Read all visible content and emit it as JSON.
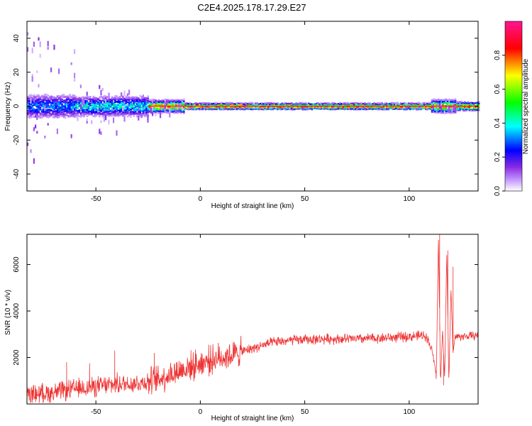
{
  "title": "C2E4.2025.178.17.29.E27",
  "chart_data": [
    {
      "type": "heatmap",
      "xlabel": "Height of straight line (km)",
      "ylabel": "Frequency (Hz)",
      "xlim": [
        -83,
        133
      ],
      "ylim": [
        -50,
        50
      ],
      "xticks": [
        -50,
        0,
        50,
        100
      ],
      "yticks": [
        -40,
        -20,
        0,
        20,
        40
      ],
      "colorbar": {
        "label": "Normalized spectral amplitude",
        "range": [
          0,
          1
        ],
        "ticks": [
          "0.0",
          "0.2",
          "0.4",
          "0.6",
          "0.8"
        ],
        "tick_values": [
          0.0,
          0.2,
          0.4,
          0.6,
          0.8
        ],
        "colors": [
          "#ffffff",
          "#8a2be2",
          "#0000ff",
          "#00ffff",
          "#00ff00",
          "#ffff00",
          "#ff0000",
          "#ff1493"
        ]
      },
      "ridge": {
        "center_frequency": 0,
        "segments": [
          {
            "x0": -83,
            "x1": -60,
            "spread": 6,
            "scatter": 45,
            "peak": 0.35
          },
          {
            "x0": -60,
            "x1": -40,
            "spread": 5,
            "scatter": 15,
            "peak": 0.45
          },
          {
            "x0": -40,
            "x1": -25,
            "spread": 5,
            "scatter": 10,
            "peak": 0.45
          },
          {
            "x0": -25,
            "x1": -8,
            "spread": 3,
            "scatter": 4,
            "peak": 0.85
          },
          {
            "x0": -8,
            "x1": 110,
            "spread": 1.5,
            "scatter": 0,
            "peak": 0.95
          },
          {
            "x0": 110,
            "x1": 122,
            "spread": 3,
            "scatter": 2,
            "peak": 0.9
          },
          {
            "x0": 122,
            "x1": 133,
            "spread": 2,
            "scatter": 0,
            "peak": 0.95
          }
        ]
      }
    },
    {
      "type": "line",
      "xlabel": "Height of straight line (km)",
      "ylabel": "SNR (10 * v/v)",
      "xlim": [
        -83,
        133
      ],
      "ylim": [
        0,
        7300
      ],
      "xticks": [
        -50,
        0,
        50,
        100
      ],
      "yticks": [
        2000,
        4000,
        6000
      ],
      "series": [
        {
          "color": "#ee3333",
          "x": [
            -83,
            -70,
            -60,
            -50,
            -40,
            -30,
            -22,
            -15,
            -5,
            5,
            15,
            25,
            35,
            45,
            60,
            75,
            90,
            100,
            108,
            111,
            113,
            114,
            115,
            116,
            117,
            118,
            119,
            120,
            121,
            122,
            125,
            133
          ],
          "y": [
            400,
            500,
            650,
            750,
            850,
            900,
            1000,
            1250,
            1600,
            1900,
            2100,
            2400,
            2650,
            2750,
            2800,
            2800,
            2850,
            2900,
            2950,
            2300,
            1200,
            7200,
            900,
            3200,
            1100,
            6600,
            900,
            5000,
            2200,
            2900,
            2900,
            2950
          ]
        }
      ],
      "noise_amplitude": [
        {
          "x0": -83,
          "x1": -25,
          "amp": 350
        },
        {
          "x0": -25,
          "x1": 20,
          "amp": 500
        },
        {
          "x0": 20,
          "x1": 110,
          "amp": 180
        },
        {
          "x0": 110,
          "x1": 133,
          "amp": 150
        }
      ],
      "spikes": [
        {
          "x": -22,
          "y": 2200
        },
        {
          "x": -41,
          "y": 2300
        },
        {
          "x": -53,
          "y": 1750
        },
        {
          "x": -64,
          "y": 1800
        },
        {
          "x": 114.6,
          "y": 7300
        },
        {
          "x": 116.5,
          "y": 800
        },
        {
          "x": 118.5,
          "y": 6600
        },
        {
          "x": 121,
          "y": 5900
        }
      ]
    }
  ]
}
